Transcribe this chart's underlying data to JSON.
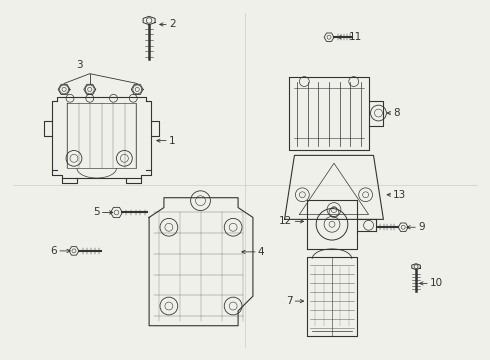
{
  "bg_color": "#f0f0eb",
  "line_color": "#333333",
  "label_color": "#111111",
  "divider_color": "#cccccc"
}
